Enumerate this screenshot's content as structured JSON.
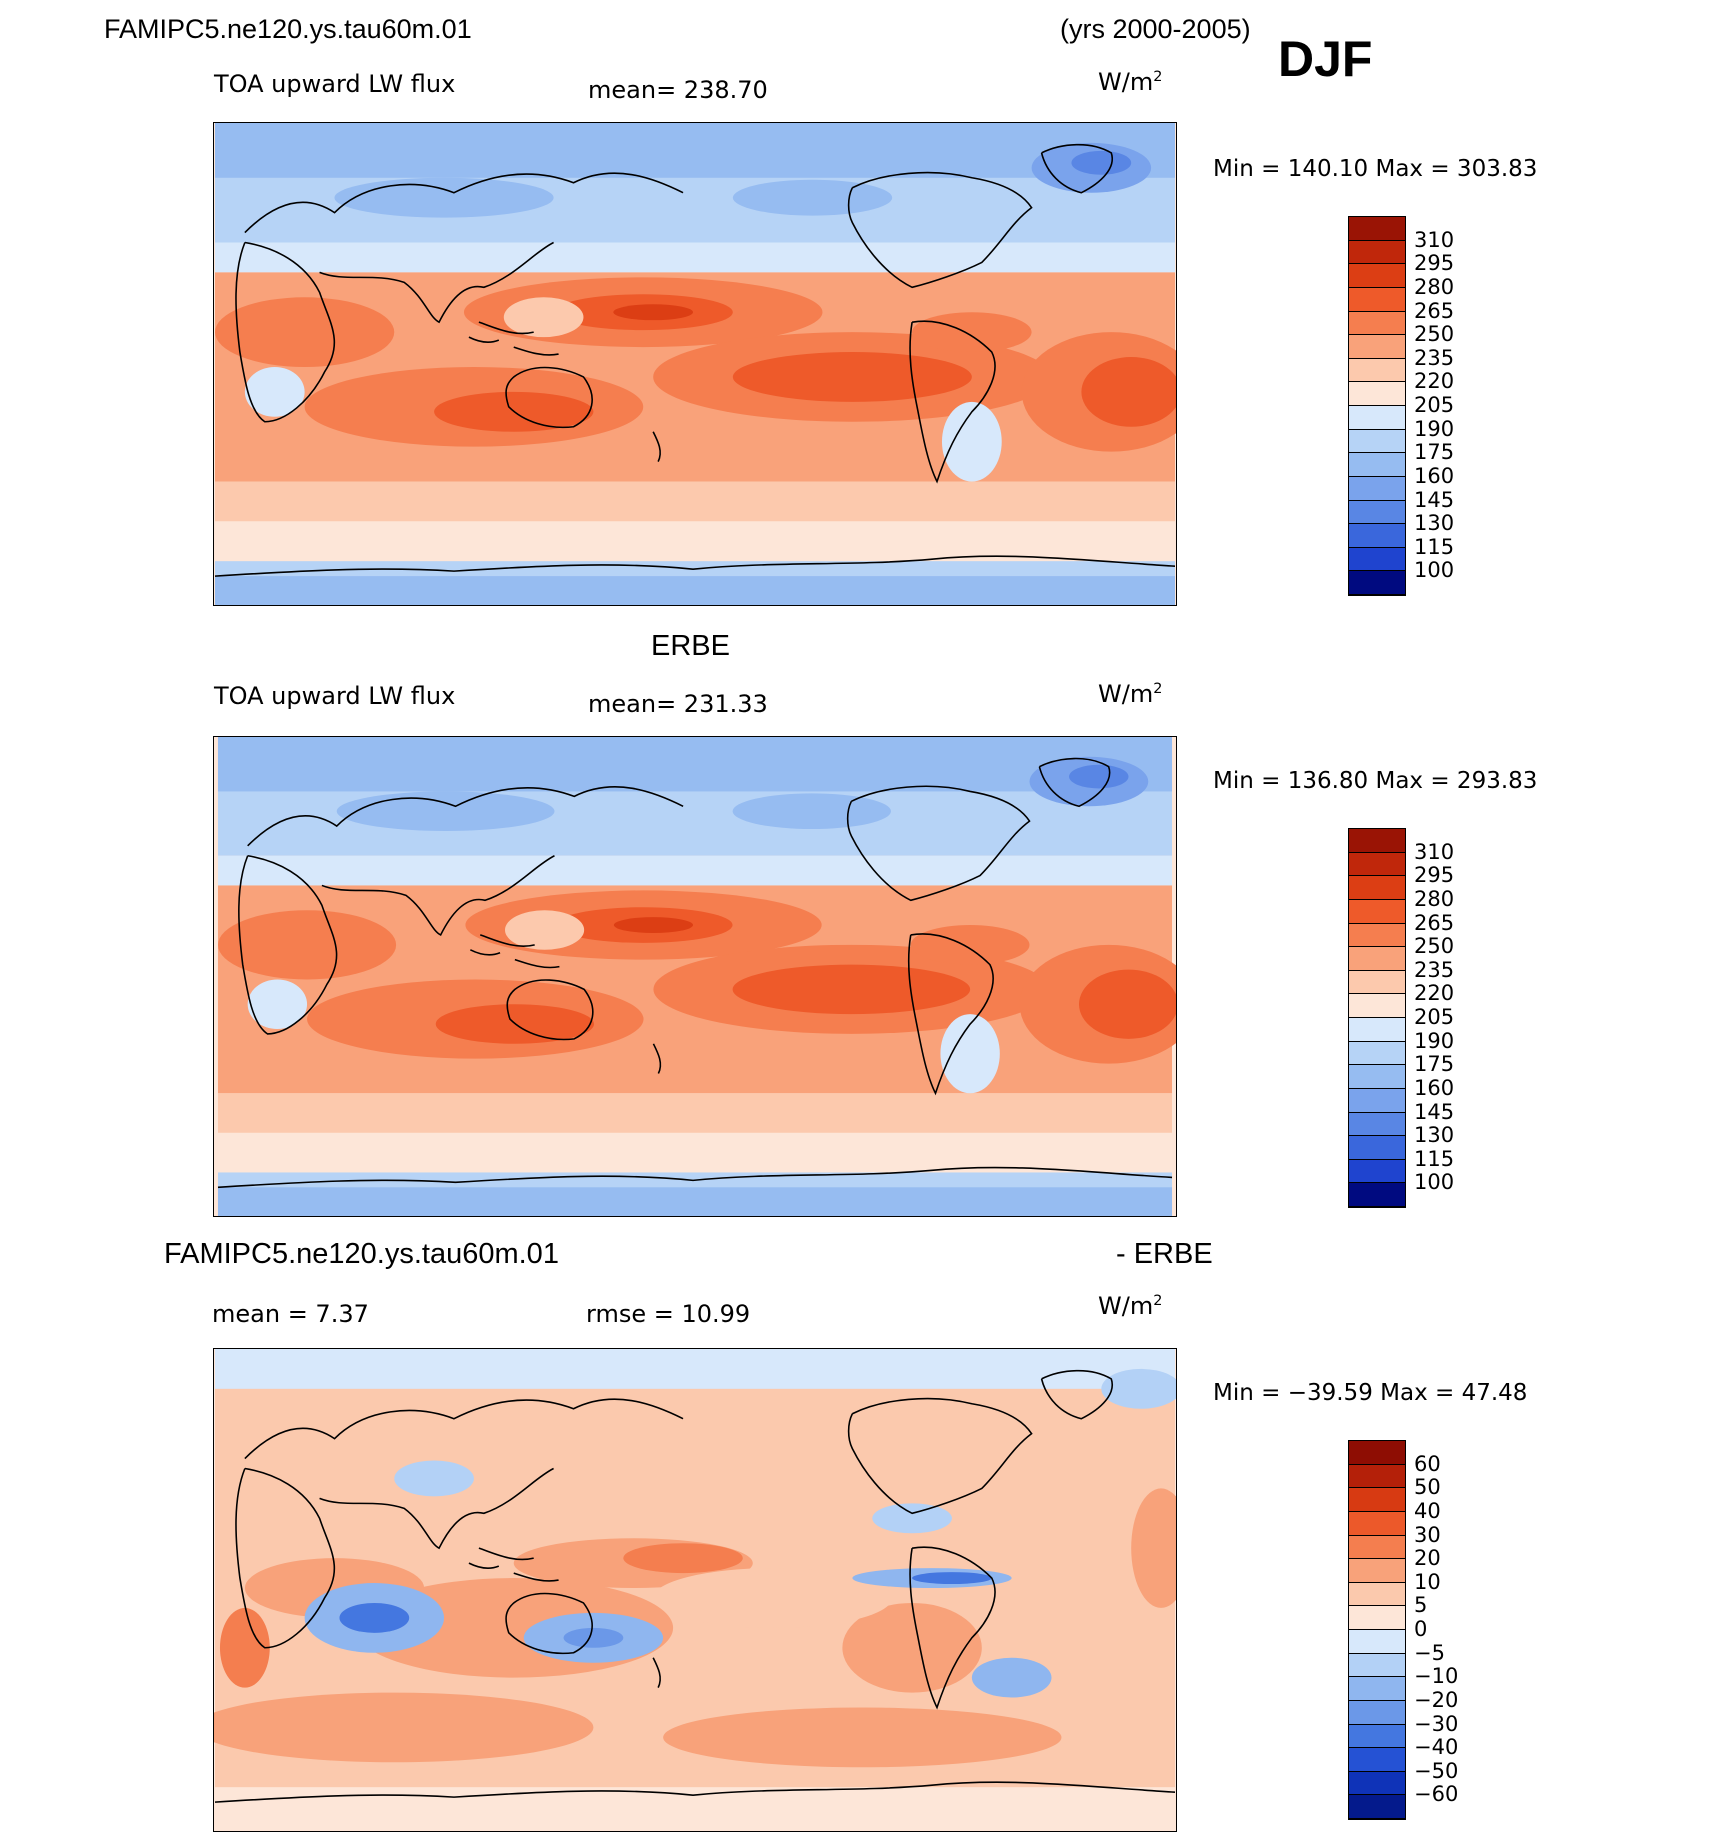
{
  "header": {
    "case_name": "FAMIPC5.ne120.ys.tau60m.01",
    "years": "(yrs 2000-2005)",
    "season": "DJF"
  },
  "colors": {
    "warm": [
      "#fde6d8",
      "#fcc9ad",
      "#f9a27a",
      "#f57e4f",
      "#ee5a2a",
      "#dc3e14",
      "#c0270b",
      "#9a1405"
    ],
    "cool": [
      "#d7e8fb",
      "#b6d3f6",
      "#96bcf1",
      "#7aa3ec",
      "#5986e4",
      "#3a67dc",
      "#1f44cf",
      "#0e27ab",
      "#000a80"
    ],
    "diff_warm": [
      "#fde6d8",
      "#fbc9ad",
      "#f8a27a",
      "#f47e4f",
      "#ec592a",
      "#d73a12",
      "#b42009",
      "#8e0d03"
    ],
    "diff_cool": [
      "#d7e8fb",
      "#b3d1f6",
      "#8fb6ef",
      "#6b98e8",
      "#4477e0",
      "#2552d4",
      "#0f33b8",
      "#041a8c"
    ]
  },
  "chart_data": [
    {
      "type": "heatmap",
      "panel_title": "",
      "left_label": "TOA upward LW flux",
      "mean_label": "mean=  238.70",
      "units": "W/m",
      "units_sup": "2",
      "min_max": "Min  =  140.10  Max  =  303.83",
      "min": 140.1,
      "max": 303.83,
      "mean": 238.7,
      "colorbar_labels": [
        "310",
        "295",
        "280",
        "265",
        "250",
        "235",
        "220",
        "205",
        "190",
        "175",
        "160",
        "145",
        "130",
        "115",
        "100"
      ]
    },
    {
      "type": "heatmap",
      "panel_title": "ERBE",
      "left_label": "TOA upward LW flux",
      "mean_label": "mean=  231.33",
      "units": "W/m",
      "units_sup": "2",
      "min_max": "Min  =  136.80  Max  =  293.83",
      "min": 136.8,
      "max": 293.83,
      "mean": 231.33,
      "colorbar_labels": [
        "310",
        "295",
        "280",
        "265",
        "250",
        "235",
        "220",
        "205",
        "190",
        "175",
        "160",
        "145",
        "130",
        "115",
        "100"
      ]
    },
    {
      "type": "heatmap",
      "panel_title_left": "FAMIPC5.ne120.ys.tau60m.01",
      "panel_title_right": "- ERBE",
      "mean_label": "mean  =     7.37",
      "rmse_label": "rmse  =    10.99",
      "units": "W/m",
      "units_sup": "2",
      "min_max": "Min  = −39.59  Max  =    47.48",
      "min": -39.59,
      "max": 47.48,
      "mean": 7.37,
      "rmse": 10.99,
      "colorbar_labels": [
        "60",
        "50",
        "40",
        "30",
        "20",
        "10",
        "5",
        "0",
        "−5",
        "−10",
        "−20",
        "−30",
        "−40",
        "−50",
        "−60"
      ]
    }
  ]
}
